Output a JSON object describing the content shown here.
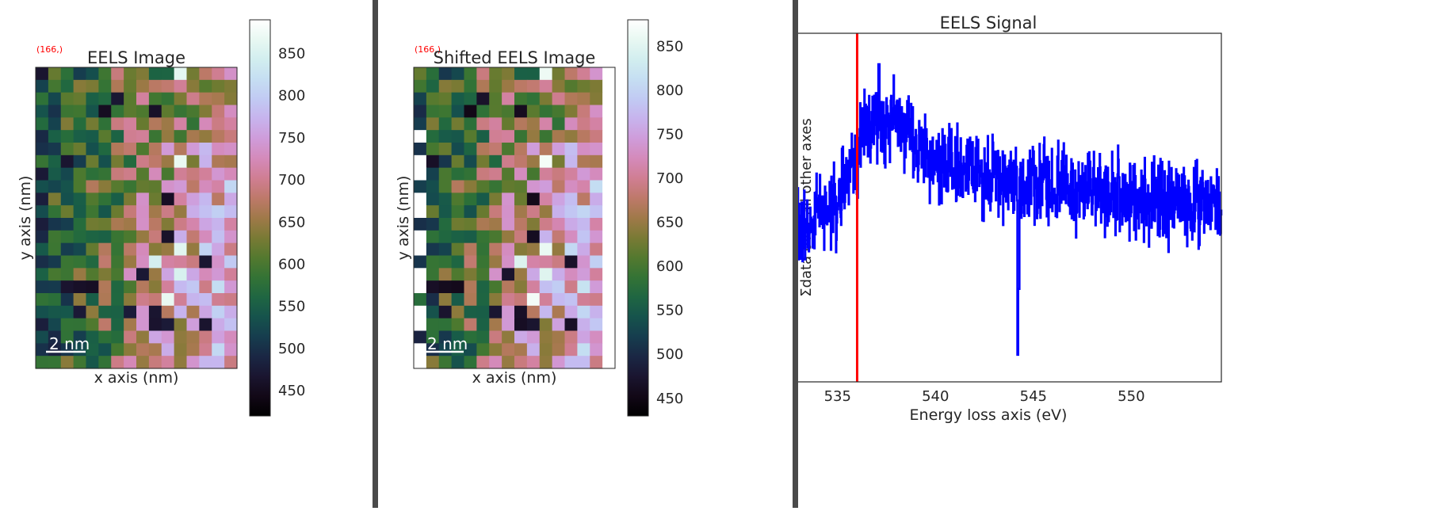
{
  "panels": [
    {
      "title": "EELS Image",
      "pointer_label": "(166,)",
      "xlabel": "x axis (nm)",
      "ylabel": "y axis (nm)",
      "scalebar_label": "2 nm",
      "cols": 16,
      "rows": 24,
      "shift_cols": 0,
      "colorbar_ticks": [
        "850",
        "800",
        "750",
        "700",
        "650",
        "600",
        "550",
        "500",
        "450"
      ],
      "vmin": 420,
      "vmax": 890
    },
    {
      "title": "Shifted EELS Image",
      "pointer_label": "(166,)",
      "xlabel": "x axis (nm)",
      "ylabel": "y axis (nm)",
      "scalebar_label": "2 nm",
      "cols": 16,
      "rows": 24,
      "shift_cols": 1,
      "colorbar_ticks": [
        "850",
        "800",
        "750",
        "700",
        "650",
        "600",
        "550",
        "500",
        "450"
      ],
      "vmin": 430,
      "vmax": 880
    }
  ],
  "colormap": "cubehelix",
  "chart_data": {
    "type": "line",
    "title": "EELS Signal",
    "xlabel": "Energy loss axis (eV)",
    "ylabel": "Σdata over all other axes",
    "xlim": [
      530.8,
      554.6
    ],
    "ylim": [
      50000,
      500000
    ],
    "xticks": [
      "535",
      "540",
      "545",
      "550"
    ],
    "yticks": [
      "500000",
      "450000",
      "400000",
      "350000",
      "300000",
      "250000",
      "200000",
      "150000",
      "100000",
      "50000"
    ],
    "marker_x": 536.0,
    "line_color": "#0000ff",
    "marker_color": "#ff0000",
    "trend_points": [
      [
        530.8,
        240000
      ],
      [
        532,
        245000
      ],
      [
        533,
        250000
      ],
      [
        534,
        262000
      ],
      [
        535,
        285000
      ],
      [
        535.6,
        320000
      ],
      [
        536,
        345000
      ],
      [
        536.5,
        375000
      ],
      [
        537,
        385000
      ],
      [
        538,
        380000
      ],
      [
        539,
        355000
      ],
      [
        540,
        335000
      ],
      [
        541,
        325000
      ],
      [
        542,
        318000
      ],
      [
        543,
        310000
      ],
      [
        545,
        305000
      ],
      [
        547,
        298000
      ],
      [
        549,
        290000
      ],
      [
        551,
        285000
      ],
      [
        553,
        280000
      ],
      [
        554.6,
        278000
      ]
    ],
    "spikes": [
      [
        544.2,
        85000
      ],
      [
        544.25,
        170000
      ],
      [
        532.1,
        188000
      ],
      [
        531.2,
        290000
      ],
      [
        537.1,
        460000
      ],
      [
        553.3,
        335000
      ]
    ],
    "noise_amplitude": 45000
  }
}
